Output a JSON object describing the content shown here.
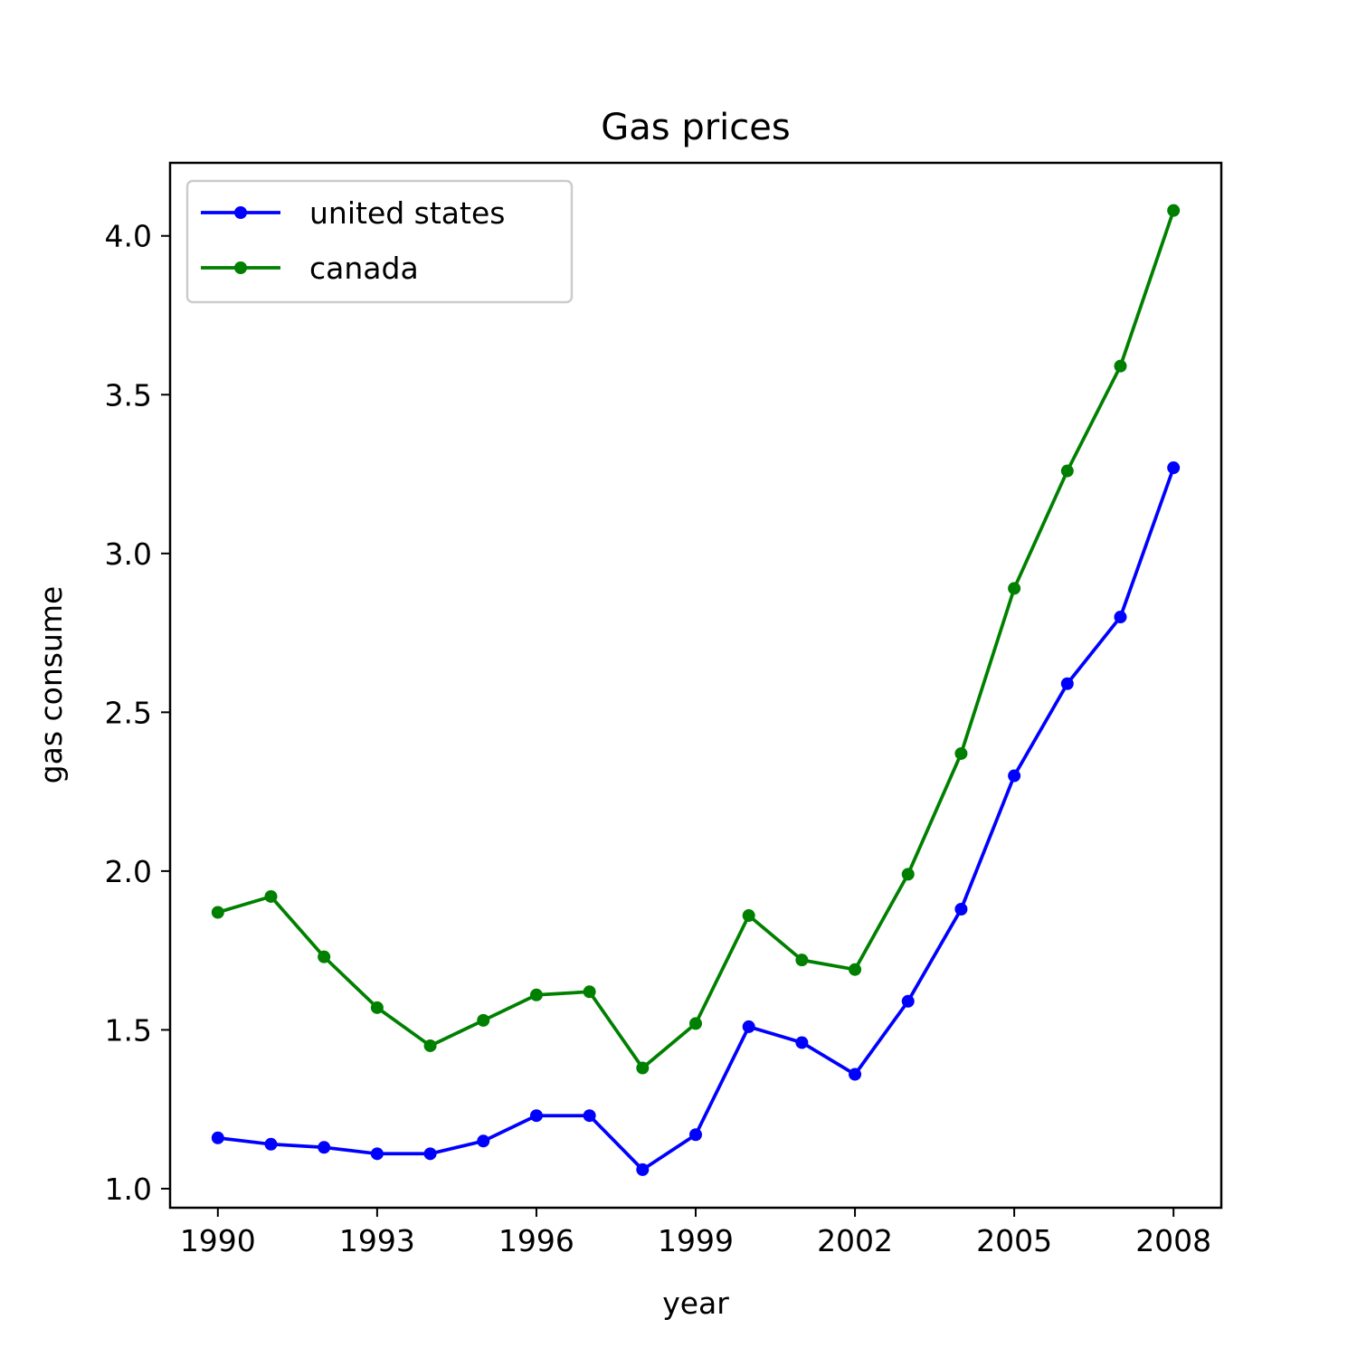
{
  "chart_data": {
    "type": "line",
    "title": "Gas prices",
    "xlabel": "year",
    "ylabel": "gas consume",
    "x": [
      1990,
      1991,
      1992,
      1993,
      1994,
      1995,
      1996,
      1997,
      1998,
      1999,
      2000,
      2001,
      2002,
      2003,
      2004,
      2005,
      2006,
      2007,
      2008
    ],
    "xticks": [
      1990,
      1993,
      1996,
      1999,
      2002,
      2005,
      2008
    ],
    "xtick_labels": [
      "1990",
      "1993",
      "1996",
      "1999",
      "2002",
      "2005",
      "2008"
    ],
    "yticks": [
      1.0,
      1.5,
      2.0,
      2.5,
      3.0,
      3.5,
      4.0
    ],
    "ytick_labels": [
      "1.0",
      "1.5",
      "2.0",
      "2.5",
      "3.0",
      "3.5",
      "4.0"
    ],
    "xlim": [
      1989.1,
      2008.9
    ],
    "ylim": [
      0.94,
      4.23
    ],
    "grid": false,
    "legend_position": "top-left",
    "series": [
      {
        "name": "united states",
        "color": "#0000ff",
        "marker": "dot",
        "values": [
          1.16,
          1.14,
          1.13,
          1.11,
          1.11,
          1.15,
          1.23,
          1.23,
          1.06,
          1.17,
          1.51,
          1.46,
          1.36,
          1.59,
          1.88,
          2.3,
          2.59,
          2.8,
          3.27
        ]
      },
      {
        "name": "canada",
        "color": "#008000",
        "marker": "dot",
        "values": [
          1.87,
          1.92,
          1.73,
          1.57,
          1.45,
          1.53,
          1.61,
          1.62,
          1.38,
          1.52,
          1.86,
          1.72,
          1.69,
          1.99,
          2.37,
          2.89,
          3.26,
          3.59,
          4.08
        ]
      }
    ]
  }
}
